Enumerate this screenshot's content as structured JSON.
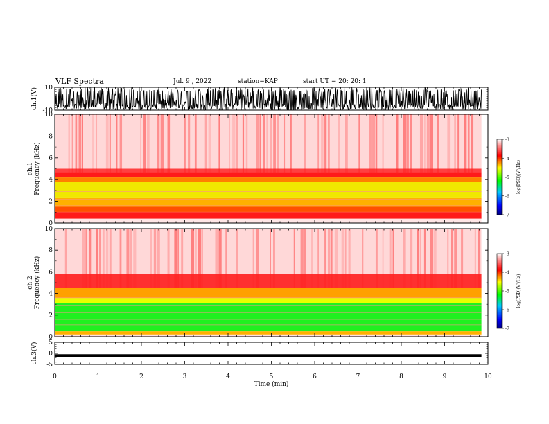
{
  "header": {
    "title": "VLF Spectra",
    "date": "Jul. 9 , 2022",
    "station": "station=KAP",
    "start": "start UT = 20: 20: 1"
  },
  "chart_data": [
    {
      "type": "line",
      "id": "ch1-waveform",
      "ylabel": "ch.1(V)",
      "ylim": [
        -10,
        10
      ],
      "yticks": [
        "10",
        "-10"
      ],
      "xlim": [
        0,
        10
      ]
    },
    {
      "type": "heatmap",
      "id": "ch1-spectrogram",
      "ylabel": "ch.1\nFrequency (kHz)",
      "ylim": [
        0,
        10
      ],
      "yticks": [
        "0",
        "2",
        "4",
        "6",
        "8",
        "10"
      ],
      "xlim": [
        0,
        10
      ],
      "data_extent_x": [
        0,
        9.85
      ],
      "colorbar": {
        "label": "log(PSD)(V²/Hz)",
        "range": [
          -7,
          -3
        ],
        "ticks": [
          "-3",
          "-4",
          "-5",
          "-6",
          "-7"
        ]
      }
    },
    {
      "type": "heatmap",
      "id": "ch2-spectrogram",
      "ylabel": "ch.2\nFrequency (kHz)",
      "ylim": [
        0,
        10
      ],
      "yticks": [
        "0",
        "2",
        "4",
        "6",
        "8",
        "10"
      ],
      "xlim": [
        0,
        10
      ],
      "data_extent_x": [
        0,
        9.85
      ],
      "colorbar": {
        "label": "log(PSD)(V²/Hz)",
        "range": [
          -7,
          -3
        ],
        "ticks": [
          "-3",
          "-4",
          "-5",
          "-6",
          "-7"
        ]
      }
    },
    {
      "type": "line",
      "id": "ch3-waveform",
      "ylabel": "ch.3(V)",
      "ylim": [
        -5,
        5
      ],
      "yticks": [
        "5",
        "0",
        "-5"
      ],
      "xlim": [
        0,
        10
      ],
      "xlabel": "Time (min)",
      "xticks": [
        "0",
        "1",
        "2",
        "3",
        "4",
        "5",
        "6",
        "7",
        "8",
        "9",
        "10"
      ]
    }
  ]
}
